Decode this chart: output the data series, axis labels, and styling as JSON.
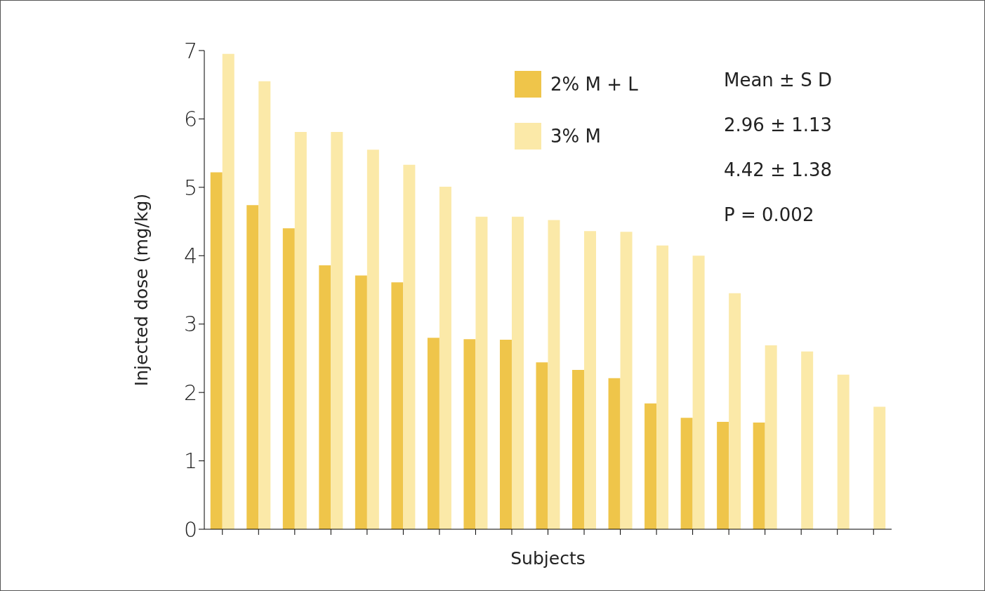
{
  "chart_data": {
    "type": "bar",
    "xlabel": "Subjects",
    "ylabel": "Injected dose (mg/kg)",
    "categories": [
      null,
      null,
      null,
      null,
      null,
      null,
      null,
      null,
      null,
      null,
      null,
      null,
      null,
      null,
      null,
      null,
      null,
      null,
      null
    ],
    "series": [
      {
        "name": "2% M + L",
        "color": "#efc54a",
        "values": [
          5.22,
          4.74,
          4.4,
          3.86,
          3.71,
          3.61,
          2.8,
          2.78,
          2.77,
          2.44,
          2.33,
          2.21,
          1.84,
          1.63,
          1.57,
          1.56,
          null,
          null,
          null
        ]
      },
      {
        "name": "3% M",
        "color": "#fbe9a8",
        "values": [
          6.95,
          6.55,
          5.81,
          5.81,
          5.55,
          5.33,
          5.01,
          4.57,
          4.57,
          4.52,
          4.36,
          4.35,
          4.15,
          4.0,
          3.45,
          2.69,
          2.6,
          2.26,
          1.79
        ]
      }
    ],
    "ylim": [
      0,
      7
    ],
    "yticks": [
      0,
      1,
      2,
      3,
      4,
      5,
      6,
      7
    ],
    "grid": false,
    "legend": "top right",
    "annotations": [
      "Mean ± S D",
      "2.96 ± 1.13",
      "4.42 ± 1.38",
      "P = 0.002"
    ]
  }
}
